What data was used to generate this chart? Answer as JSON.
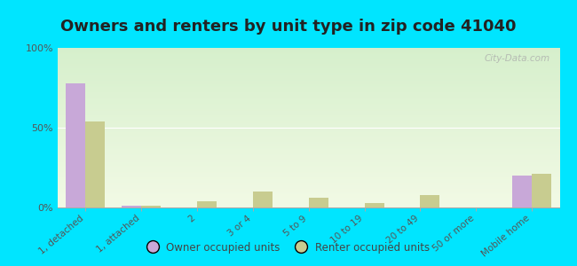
{
  "title": "Owners and renters by unit type in zip code 41040",
  "categories": [
    "1, detached",
    "1, attached",
    "2",
    "3 or 4",
    "5 to 9",
    "10 to 19",
    "20 to 49",
    "50 or more",
    "Mobile home"
  ],
  "owner_values": [
    78,
    1,
    0,
    0,
    0,
    0,
    0,
    0,
    20
  ],
  "renter_values": [
    54,
    1,
    4,
    10,
    6,
    3,
    8,
    0,
    21
  ],
  "owner_color": "#c8a8d8",
  "renter_color": "#c8cc90",
  "outer_bg": "#00e5ff",
  "ylim": [
    0,
    100
  ],
  "yticks": [
    0,
    50,
    100
  ],
  "ytick_labels": [
    "0%",
    "50%",
    "100%"
  ],
  "bar_width": 0.35,
  "title_fontsize": 13,
  "legend_labels": [
    "Owner occupied units",
    "Renter occupied units"
  ],
  "watermark": "City-Data.com"
}
